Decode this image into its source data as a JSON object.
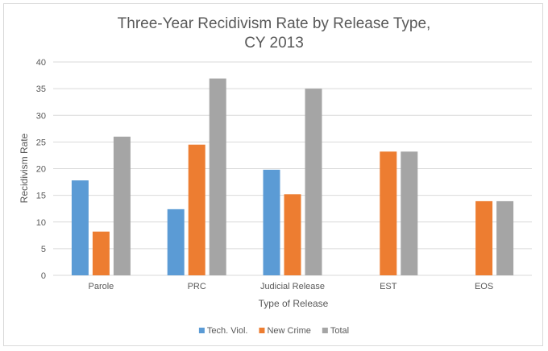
{
  "chart_data": {
    "type": "bar",
    "title_line1": "Three-Year Recidivism Rate by Release Type,",
    "title_line2": "CY 2013",
    "xlabel": "Type of Release",
    "ylabel": "Recidivism Rate",
    "categories": [
      "Parole",
      "PRC",
      "Judicial Release",
      "EST",
      "EOS"
    ],
    "series": [
      {
        "name": "Tech. Viol.",
        "color": "#5b9bd5",
        "values": [
          17.8,
          12.4,
          19.8,
          null,
          null
        ]
      },
      {
        "name": "New Crime",
        "color": "#ed7d31",
        "values": [
          8.2,
          24.5,
          15.2,
          23.2,
          13.9
        ]
      },
      {
        "name": "Total",
        "color": "#a5a5a5",
        "values": [
          26.0,
          36.9,
          35.0,
          23.2,
          13.9
        ]
      }
    ],
    "ylim": [
      0,
      40
    ],
    "yticks": [
      0,
      5,
      10,
      15,
      20,
      25,
      30,
      35,
      40
    ],
    "grid": true,
    "legend_position": "bottom"
  }
}
